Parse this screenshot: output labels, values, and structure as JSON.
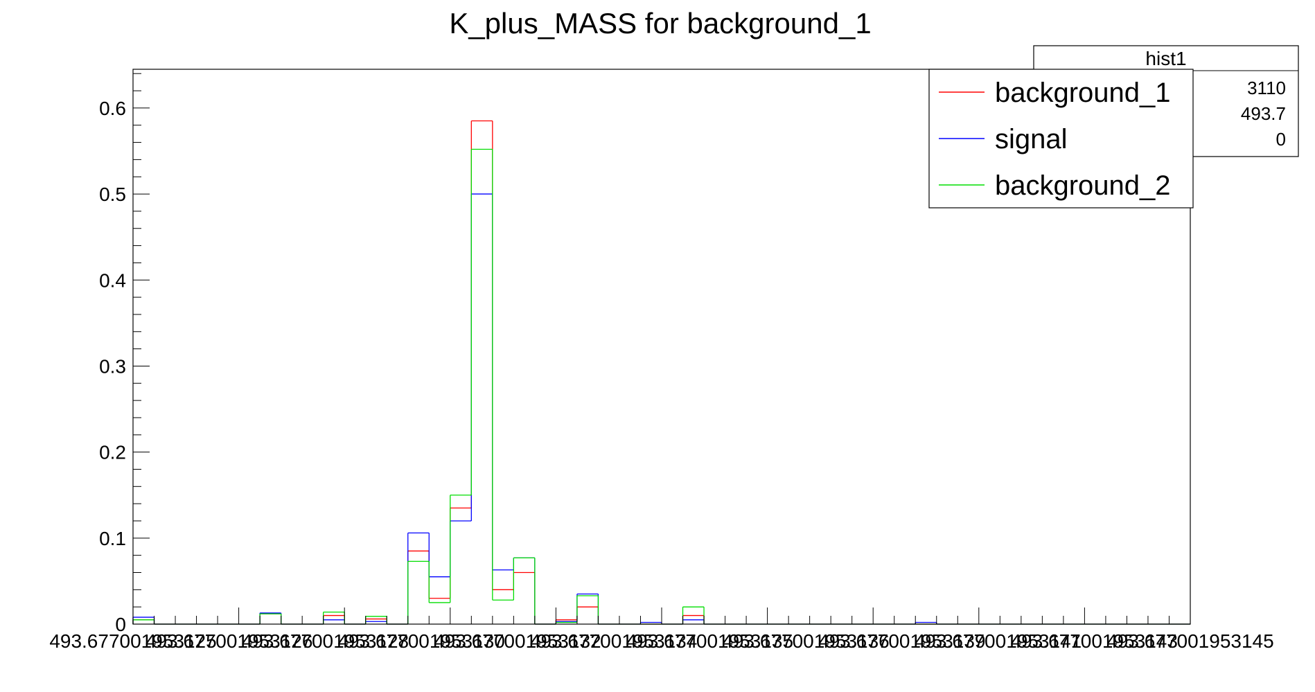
{
  "chart_data": {
    "type": "bar",
    "subtype": "step-histogram",
    "title": "K_plus_MASS for background_1",
    "xlabel": "",
    "ylabel": "",
    "ylim": [
      0,
      0.645
    ],
    "yticks": [
      "0",
      "0.1",
      "0.2",
      "0.3",
      "0.4",
      "0.5",
      "0.6"
    ],
    "xticks": [
      "493.677001953125",
      "493.677001953126",
      "493.677001953128",
      "493.677001953130",
      "493.677001953132",
      "493.677001953134",
      "493.677001953135",
      "493.677001953136",
      "493.677001953139",
      "493.677001953141",
      "493.677001953143",
      "493.677001953145"
    ],
    "bins": 50,
    "series": [
      {
        "name": "background_1",
        "color": "#ff0000",
        "values": [
          0.005,
          0,
          0,
          0,
          0,
          0,
          0.012,
          0,
          0,
          0.01,
          0,
          0.006,
          0,
          0.085,
          0.03,
          0.135,
          0.585,
          0.04,
          0.06,
          0,
          0.005,
          0.02,
          0,
          0,
          0,
          0,
          0.01,
          0,
          0,
          0,
          0,
          0,
          0,
          0,
          0,
          0,
          0,
          0,
          0,
          0,
          0,
          0,
          0,
          0,
          0,
          0,
          0,
          0,
          0,
          0
        ]
      },
      {
        "name": "signal",
        "color": "#0000ff",
        "values": [
          0.008,
          0,
          0,
          0,
          0,
          0,
          0.013,
          0,
          0,
          0.005,
          0,
          0.003,
          0,
          0.106,
          0.055,
          0.12,
          0.5,
          0.063,
          0.077,
          0,
          0.003,
          0.035,
          0,
          0,
          0.002,
          0,
          0.005,
          0,
          0,
          0,
          0,
          0,
          0,
          0,
          0,
          0,
          0,
          0.002,
          0,
          0,
          0,
          0,
          0,
          0,
          0,
          0,
          0,
          0,
          0,
          0
        ]
      },
      {
        "name": "background_2",
        "color": "#00dd00",
        "values": [
          0.005,
          0,
          0,
          0,
          0,
          0,
          0.012,
          0,
          0,
          0.014,
          0,
          0.009,
          0,
          0.073,
          0.025,
          0.15,
          0.552,
          0.028,
          0.077,
          0,
          0.002,
          0.033,
          0,
          0,
          0,
          0,
          0.02,
          0,
          0,
          0,
          0,
          0,
          0,
          0,
          0,
          0,
          0,
          0,
          0,
          0,
          0,
          0,
          0,
          0,
          0,
          0,
          0,
          0,
          0,
          0
        ]
      }
    ],
    "legend": {
      "position": "top-right",
      "entries": [
        "background_1",
        "signal",
        "background_2"
      ]
    },
    "stats_box": {
      "title": "hist1",
      "values": [
        "3110",
        "493.7",
        "0"
      ]
    },
    "grid": false
  }
}
